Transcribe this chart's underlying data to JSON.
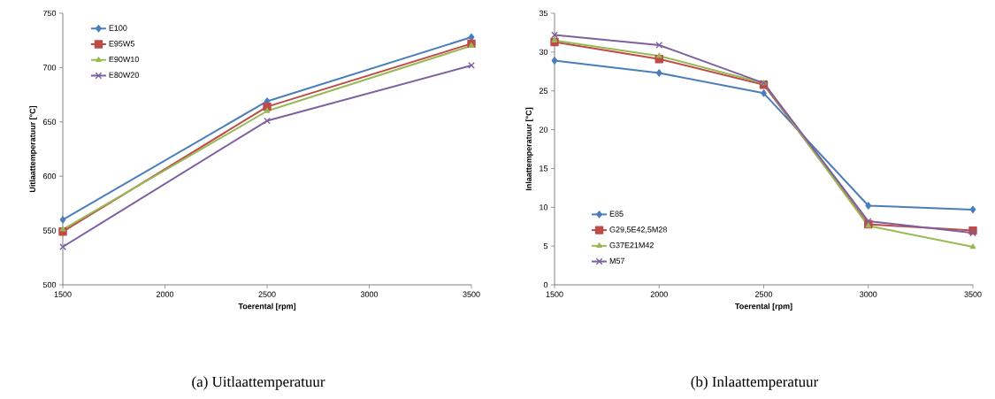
{
  "chart_data": [
    {
      "type": "line",
      "xlabel": "Toerental [rpm]",
      "ylabel": "Uitlaattemperatuur [°C]",
      "x": [
        1500,
        2500,
        3500
      ],
      "xlim": [
        1500,
        3500
      ],
      "ylim": [
        500,
        750
      ],
      "xticks": [
        1500,
        2000,
        2500,
        3000,
        3500
      ],
      "yticks": [
        500,
        550,
        600,
        650,
        700,
        750
      ],
      "grid": false,
      "legend": "top left",
      "line_style": "solid",
      "annotations": [
        "(a) Uitlaattemperatuur"
      ],
      "series": [
        {
          "name": "E100",
          "color": "#4a7ebb",
          "marker": "diamond",
          "values": [
            560,
            669,
            728
          ]
        },
        {
          "name": "E95W5",
          "color": "#be4b48",
          "marker": "square",
          "values": [
            549,
            664,
            722
          ]
        },
        {
          "name": "E90W10",
          "color": "#98b954",
          "marker": "triangle",
          "values": [
            551,
            660,
            720
          ]
        },
        {
          "name": "E80W20",
          "color": "#7d60a0",
          "marker": "cross",
          "values": [
            535,
            651,
            702
          ]
        }
      ]
    },
    {
      "type": "line",
      "xlabel": "Toerental [rpm]",
      "ylabel": "Inlaattemperatuur [°C]",
      "x": [
        1500,
        2000,
        2500,
        3000,
        3500
      ],
      "xlim": [
        1500,
        3500
      ],
      "ylim": [
        0,
        35
      ],
      "xticks": [
        1500,
        2000,
        2500,
        3000,
        3500
      ],
      "yticks": [
        0,
        5,
        10,
        15,
        20,
        25,
        30,
        35
      ],
      "grid": false,
      "legend": "bottom left",
      "line_style": "solid",
      "annotations": [
        "(b) Inlaattemperatuur"
      ],
      "series": [
        {
          "name": "E85",
          "color": "#4a7ebb",
          "marker": "diamond",
          "values": [
            28.9,
            27.3,
            24.7,
            10.2,
            9.7
          ]
        },
        {
          "name": "G29,5E42,5M28",
          "color": "#be4b48",
          "marker": "square",
          "values": [
            31.3,
            29.1,
            25.8,
            7.8,
            7.0
          ]
        },
        {
          "name": "G37E21M42",
          "color": "#98b954",
          "marker": "triangle",
          "values": [
            31.5,
            29.5,
            26.0,
            7.6,
            4.9
          ]
        },
        {
          "name": "M57",
          "color": "#7d60a0",
          "marker": "cross",
          "values": [
            32.2,
            30.9,
            26.0,
            8.2,
            6.7
          ]
        }
      ]
    }
  ]
}
